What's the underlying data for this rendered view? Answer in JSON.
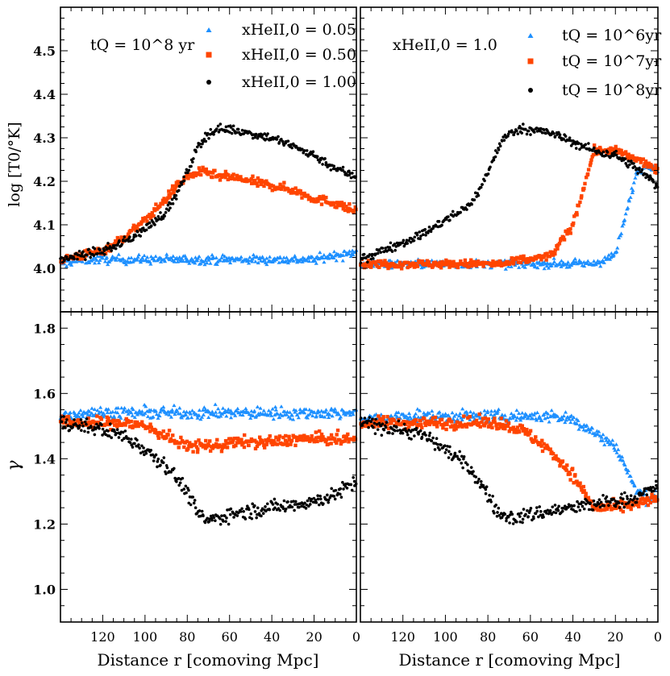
{
  "chart_data": {
    "type": "scatter",
    "x_range": [
      140,
      0
    ],
    "x_ticks": [
      120,
      100,
      80,
      60,
      40,
      20,
      0
    ],
    "x_tick_labels": [
      "120",
      "100",
      "80",
      "60",
      "40",
      "20",
      "0"
    ],
    "xlabel_left": "Distance r  [comoving Mpc]",
    "xlabel_right": "Distance r  [comoving Mpc]",
    "top_ylabel": "log [T0/°K]",
    "top_ylim": [
      3.9,
      4.6
    ],
    "top_yticks": [
      4.0,
      4.1,
      4.2,
      4.3,
      4.4,
      4.5
    ],
    "top_ytick_labels": [
      "4.0",
      "4.1",
      "4.2",
      "4.3",
      "4.4",
      "4.5"
    ],
    "bottom_ylabel": "γ",
    "bottom_ylim": [
      0.9,
      1.85
    ],
    "bottom_yticks": [
      1.0,
      1.2,
      1.4,
      1.6,
      1.8
    ],
    "bottom_ytick_labels": [
      "1.0",
      "1.2",
      "1.4",
      "1.6",
      "1.8"
    ],
    "colors": {
      "blue": "#1e90ff",
      "orange": "#ff4500",
      "black": "#000000"
    },
    "left_annotation": "tQ = 10^8 yr",
    "right_annotation": "xHeII,0 = 1.0",
    "left_legend": [
      {
        "label": "xHeII,0 = 0.05",
        "color": "#1e90ff",
        "marker": "triangle"
      },
      {
        "label": "xHeII,0 = 0.50",
        "color": "#ff4500",
        "marker": "square"
      },
      {
        "label": "xHeII,0 = 1.00",
        "color": "#000000",
        "marker": "circle"
      }
    ],
    "right_legend": [
      {
        "label": "tQ = 10^6yr",
        "color": "#1e90ff",
        "marker": "triangle"
      },
      {
        "label": "tQ = 10^7yr",
        "color": "#ff4500",
        "marker": "square"
      },
      {
        "label": "tQ = 10^8yr",
        "color": "#000000",
        "marker": "circle"
      }
    ],
    "series": {
      "T0": {
        "x": [
          140,
          130,
          120,
          110,
          100,
          90,
          85,
          80,
          75,
          70,
          65,
          60,
          50,
          40,
          30,
          20,
          10,
          5,
          0
        ],
        "left_x005": [
          4.01,
          4.02,
          4.02,
          4.02,
          4.02,
          4.02,
          4.02,
          4.02,
          4.02,
          4.02,
          4.02,
          4.02,
          4.02,
          4.02,
          4.02,
          4.02,
          4.03,
          4.03,
          4.04
        ],
        "left_x050": [
          4.02,
          4.03,
          4.04,
          4.07,
          4.11,
          4.16,
          4.19,
          4.21,
          4.22,
          4.22,
          4.21,
          4.21,
          4.2,
          4.19,
          4.18,
          4.16,
          4.15,
          4.14,
          4.13
        ],
        "left_x100": [
          4.02,
          4.03,
          4.04,
          4.06,
          4.09,
          4.13,
          4.17,
          4.22,
          4.28,
          4.31,
          4.32,
          4.32,
          4.31,
          4.3,
          4.28,
          4.26,
          4.23,
          4.22,
          4.21
        ],
        "right_t6": [
          4.01,
          4.01,
          4.01,
          4.01,
          4.01,
          4.01,
          4.01,
          4.01,
          4.01,
          4.01,
          4.01,
          4.01,
          4.01,
          4.01,
          4.01,
          4.03,
          4.22,
          4.24,
          4.23
        ],
        "right_t7": [
          4.01,
          4.01,
          4.01,
          4.01,
          4.01,
          4.01,
          4.01,
          4.01,
          4.01,
          4.01,
          4.02,
          4.02,
          4.03,
          4.1,
          4.27,
          4.27,
          4.25,
          4.24,
          4.22
        ],
        "right_t8": [
          4.02,
          4.04,
          4.06,
          4.08,
          4.11,
          4.14,
          4.17,
          4.22,
          4.28,
          4.31,
          4.32,
          4.32,
          4.31,
          4.29,
          4.27,
          4.26,
          4.23,
          4.21,
          4.19
        ]
      },
      "gamma": {
        "x": [
          140,
          130,
          120,
          110,
          100,
          90,
          85,
          80,
          75,
          70,
          65,
          60,
          50,
          40,
          30,
          20,
          10,
          5,
          0
        ],
        "left_x005": [
          1.53,
          1.54,
          1.54,
          1.54,
          1.54,
          1.54,
          1.54,
          1.54,
          1.54,
          1.54,
          1.54,
          1.54,
          1.54,
          1.54,
          1.54,
          1.54,
          1.54,
          1.54,
          1.55
        ],
        "left_x050": [
          1.51,
          1.51,
          1.51,
          1.51,
          1.5,
          1.47,
          1.45,
          1.44,
          1.44,
          1.44,
          1.44,
          1.45,
          1.45,
          1.45,
          1.46,
          1.46,
          1.46,
          1.46,
          1.46
        ],
        "left_x100": [
          1.51,
          1.5,
          1.49,
          1.47,
          1.43,
          1.38,
          1.34,
          1.3,
          1.23,
          1.21,
          1.22,
          1.23,
          1.24,
          1.25,
          1.26,
          1.27,
          1.29,
          1.31,
          1.33
        ],
        "right_t6": [
          1.52,
          1.52,
          1.53,
          1.53,
          1.53,
          1.53,
          1.53,
          1.53,
          1.53,
          1.53,
          1.53,
          1.53,
          1.53,
          1.52,
          1.48,
          1.44,
          1.3,
          1.28,
          1.28
        ],
        "right_t7": [
          1.51,
          1.51,
          1.51,
          1.51,
          1.51,
          1.51,
          1.51,
          1.51,
          1.51,
          1.5,
          1.49,
          1.47,
          1.42,
          1.35,
          1.25,
          1.25,
          1.26,
          1.27,
          1.28
        ],
        "right_t8": [
          1.51,
          1.5,
          1.49,
          1.47,
          1.43,
          1.38,
          1.34,
          1.29,
          1.23,
          1.22,
          1.22,
          1.23,
          1.24,
          1.25,
          1.26,
          1.27,
          1.28,
          1.3,
          1.32
        ]
      }
    }
  }
}
